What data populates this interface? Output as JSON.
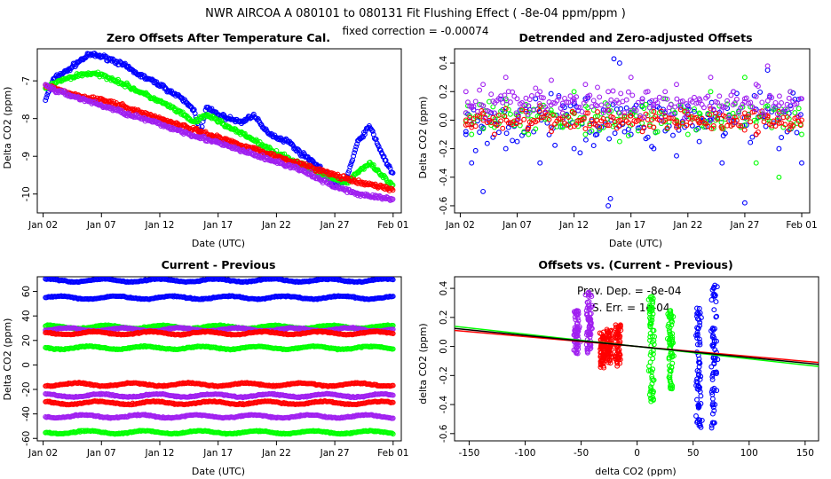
{
  "figure": {
    "title": "NWR   AIRCOA A   080101 to 080131   Fit Flushing Effect ( -8e-04 ppm/ppm )",
    "subtitle": "fixed correction = -0.00074"
  },
  "colors": {
    "blue": "#0000ff",
    "green": "#00ff00",
    "red": "#ff0000",
    "purple": "#a020f0",
    "black": "#000000"
  },
  "chart_data": [
    {
      "id": "zero-offsets",
      "type": "scatter",
      "title": "Zero Offsets After Temperature Cal.",
      "xlabel": "Date (UTC)",
      "ylabel": "Delta CO2 (ppm)",
      "xlim": [
        0.5,
        31.7
      ],
      "ylim": [
        -10.5,
        -6.15
      ],
      "xticks": [
        {
          "v": 1,
          "label": "Jan 02"
        },
        {
          "v": 6,
          "label": "Jan 07"
        },
        {
          "v": 11,
          "label": "Jan 12"
        },
        {
          "v": 16,
          "label": "Jan 17"
        },
        {
          "v": 21,
          "label": "Jan 22"
        },
        {
          "v": 26,
          "label": "Jan 27"
        },
        {
          "v": 31,
          "label": "Feb 01"
        }
      ],
      "yticks": [
        {
          "v": -7,
          "label": "-7"
        },
        {
          "v": -8,
          "label": "-8"
        },
        {
          "v": -9,
          "label": "-9"
        },
        {
          "v": -10,
          "label": "-10"
        }
      ],
      "series": [
        {
          "color": "blue",
          "x": [
            1.2,
            2,
            3,
            4,
            5,
            6,
            7,
            8,
            9,
            10,
            11,
            12,
            13,
            14,
            14.5,
            15,
            16,
            17,
            18,
            19,
            20,
            21,
            22,
            23,
            24,
            25,
            26,
            27,
            28,
            29,
            30,
            31
          ],
          "y": [
            -7.5,
            -6.9,
            -6.75,
            -6.5,
            -6.3,
            -6.35,
            -6.45,
            -6.6,
            -6.8,
            -6.95,
            -7.1,
            -7.3,
            -7.5,
            -7.8,
            -8.4,
            -7.7,
            -7.9,
            -8.0,
            -8.1,
            -7.9,
            -8.3,
            -8.5,
            -8.6,
            -8.9,
            -9.1,
            -9.4,
            -9.8,
            -9.6,
            -8.6,
            -8.2,
            -8.9,
            -9.5
          ]
        },
        {
          "color": "green",
          "x": [
            1.2,
            2,
            3,
            4,
            5,
            6,
            7,
            8,
            9,
            10,
            11,
            12,
            13,
            14,
            15,
            16,
            17,
            18,
            19,
            20,
            21,
            22,
            23,
            24,
            25,
            26,
            27,
            28,
            29,
            30,
            31
          ],
          "y": [
            -7.2,
            -7.05,
            -6.95,
            -6.85,
            -6.8,
            -6.85,
            -6.95,
            -7.1,
            -7.25,
            -7.4,
            -7.55,
            -7.7,
            -7.9,
            -8.1,
            -7.9,
            -8.05,
            -8.25,
            -8.4,
            -8.55,
            -8.75,
            -8.9,
            -9.05,
            -9.2,
            -9.35,
            -9.5,
            -9.6,
            -9.7,
            -9.4,
            -9.2,
            -9.5,
            -9.8
          ]
        },
        {
          "color": "red",
          "x": [
            1.2,
            2,
            3,
            4,
            5,
            6,
            7,
            8,
            9,
            10,
            11,
            12,
            13,
            14,
            15,
            16,
            17,
            18,
            19,
            20,
            21,
            22,
            23,
            24,
            25,
            26,
            27,
            28,
            29,
            30,
            31
          ],
          "y": [
            -7.15,
            -7.2,
            -7.3,
            -7.4,
            -7.45,
            -7.5,
            -7.6,
            -7.7,
            -7.8,
            -7.9,
            -8.0,
            -8.1,
            -8.2,
            -8.3,
            -8.4,
            -8.5,
            -8.6,
            -8.7,
            -8.8,
            -8.9,
            -9.0,
            -9.1,
            -9.2,
            -9.3,
            -9.4,
            -9.5,
            -9.6,
            -9.7,
            -9.75,
            -9.8,
            -9.9
          ]
        },
        {
          "color": "purple",
          "x": [
            1.2,
            2,
            3,
            4,
            5,
            6,
            7,
            8,
            9,
            10,
            11,
            12,
            13,
            14,
            15,
            16,
            17,
            18,
            19,
            20,
            21,
            22,
            23,
            24,
            25,
            26,
            27,
            28,
            29,
            30,
            31
          ],
          "y": [
            -7.1,
            -7.25,
            -7.35,
            -7.45,
            -7.55,
            -7.65,
            -7.75,
            -7.85,
            -7.95,
            -8.05,
            -8.15,
            -8.25,
            -8.35,
            -8.45,
            -8.55,
            -8.65,
            -8.75,
            -8.85,
            -8.95,
            -9.05,
            -9.15,
            -9.25,
            -9.35,
            -9.5,
            -9.65,
            -9.8,
            -9.9,
            -10.0,
            -10.05,
            -10.1,
            -10.15
          ]
        }
      ]
    },
    {
      "id": "detrended",
      "type": "scatter",
      "title": "Detrended and Zero-adjusted Offsets",
      "xlabel": "Date (UTC)",
      "ylabel": "Delta CO2 (ppm)",
      "xlim": [
        0.5,
        31.7
      ],
      "ylim": [
        -0.65,
        0.5
      ],
      "xticks": [
        {
          "v": 1,
          "label": "Jan 02"
        },
        {
          "v": 6,
          "label": "Jan 07"
        },
        {
          "v": 11,
          "label": "Jan 12"
        },
        {
          "v": 16,
          "label": "Jan 17"
        },
        {
          "v": 21,
          "label": "Jan 22"
        },
        {
          "v": 26,
          "label": "Jan 27"
        },
        {
          "v": 31,
          "label": "Feb 01"
        }
      ],
      "yticks": [
        {
          "v": 0.4,
          "label": "0.4"
        },
        {
          "v": 0.2,
          "label": "0.2"
        },
        {
          "v": 0.0,
          "label": "0.0"
        },
        {
          "v": -0.2,
          "label": "-0.2"
        },
        {
          "v": -0.4,
          "label": "-0.4"
        },
        {
          "v": -0.6,
          "label": "-0.6"
        }
      ],
      "series": [
        {
          "color": "blue",
          "center": 0.0,
          "spread": 0.25,
          "x": [
            1.5,
            2,
            3,
            4,
            5,
            6,
            7,
            8,
            9,
            10,
            11,
            12,
            13,
            14,
            14.2,
            14.5,
            15,
            16,
            17,
            18,
            19,
            20,
            21,
            22,
            23,
            24,
            25,
            26,
            27,
            28,
            29,
            30,
            31
          ],
          "y": [
            -0.1,
            -0.3,
            -0.5,
            0.05,
            -0.2,
            -0.15,
            0.1,
            -0.3,
            -0.05,
            0.1,
            -0.2,
            0.15,
            -0.1,
            -0.6,
            -0.55,
            0.43,
            0.4,
            -0.1,
            0.15,
            -0.2,
            0.05,
            -0.25,
            0.1,
            -0.15,
            0.0,
            -0.3,
            0.2,
            -0.58,
            -0.1,
            0.35,
            -0.2,
            0.1,
            -0.3
          ]
        },
        {
          "color": "green",
          "center": 0.02,
          "spread": 0.15,
          "x": [
            1.5,
            2,
            3,
            4,
            5,
            6,
            7,
            8,
            9,
            10,
            11,
            12,
            13,
            14,
            15,
            16,
            17,
            18,
            19,
            20,
            21,
            22,
            23,
            24,
            25,
            26,
            27,
            28,
            29,
            30,
            31
          ],
          "y": [
            0.05,
            -0.1,
            0.1,
            -0.05,
            0.15,
            0.0,
            -0.1,
            0.1,
            0.05,
            -0.05,
            0.2,
            -0.1,
            0.0,
            0.1,
            -0.15,
            0.05,
            0.1,
            -0.05,
            0.15,
            0.0,
            -0.1,
            0.05,
            0.2,
            -0.05,
            0.0,
            0.3,
            -0.3,
            0.1,
            -0.4,
            0.2,
            -0.1
          ]
        },
        {
          "color": "red",
          "center": 0.0,
          "spread": 0.1,
          "x": [
            1.5,
            2,
            3,
            4,
            5,
            6,
            7,
            8,
            9,
            10,
            11,
            12,
            13,
            14,
            15,
            16,
            17,
            18,
            19,
            20,
            21,
            22,
            23,
            24,
            25,
            26,
            27,
            28,
            29,
            30,
            31
          ],
          "y": [
            0.0,
            -0.05,
            0.05,
            -0.1,
            0.08,
            0.0,
            -0.05,
            0.1,
            -0.08,
            0.02,
            0.05,
            -0.06,
            0.0,
            0.07,
            -0.04,
            0.03,
            -0.08,
            0.06,
            0.0,
            -0.05,
            0.04,
            -0.02,
            0.08,
            -0.06,
            0.0,
            0.05,
            -0.1,
            0.02,
            0.06,
            -0.04,
            0.0
          ]
        },
        {
          "color": "purple",
          "center": 0.12,
          "spread": 0.15,
          "x": [
            1.5,
            2,
            3,
            4,
            5,
            6,
            7,
            8,
            9,
            10,
            11,
            12,
            13,
            14,
            15,
            16,
            17,
            18,
            19,
            20,
            21,
            22,
            23,
            24,
            25,
            26,
            27,
            28,
            29,
            30,
            31
          ],
          "y": [
            0.2,
            0.1,
            0.25,
            0.05,
            0.3,
            0.15,
            0.1,
            0.2,
            0.28,
            0.05,
            0.15,
            0.25,
            0.1,
            0.2,
            0.05,
            0.3,
            0.15,
            0.1,
            0.2,
            0.25,
            0.05,
            0.15,
            0.3,
            0.1,
            0.2,
            0.15,
            0.25,
            0.38,
            0.1,
            0.2,
            0.15
          ]
        }
      ]
    },
    {
      "id": "current-previous",
      "type": "scatter",
      "title": "Current - Previous",
      "xlabel": "Date (UTC)",
      "ylabel": "Delta CO2 (ppm)",
      "xlim": [
        0.5,
        31.7
      ],
      "ylim": [
        -62,
        72
      ],
      "xticks": [
        {
          "v": 1,
          "label": "Jan 02"
        },
        {
          "v": 6,
          "label": "Jan 07"
        },
        {
          "v": 11,
          "label": "Jan 12"
        },
        {
          "v": 16,
          "label": "Jan 17"
        },
        {
          "v": 21,
          "label": "Jan 22"
        },
        {
          "v": 26,
          "label": "Jan 27"
        },
        {
          "v": 31,
          "label": "Feb 01"
        }
      ],
      "yticks": [
        {
          "v": 60,
          "label": "60"
        },
        {
          "v": 40,
          "label": "40"
        },
        {
          "v": 20,
          "label": "20"
        },
        {
          "v": 0,
          "label": "0"
        },
        {
          "v": -20,
          "label": "-20"
        },
        {
          "v": -40,
          "label": "-40"
        },
        {
          "v": -60,
          "label": "-60"
        }
      ],
      "series": [
        {
          "color": "blue",
          "level": 69
        },
        {
          "color": "blue",
          "level": 55
        },
        {
          "color": "green",
          "level": 31
        },
        {
          "color": "purple",
          "level": 29
        },
        {
          "color": "red",
          "level": 26
        },
        {
          "color": "green",
          "level": 14
        },
        {
          "color": "red",
          "level": -16
        },
        {
          "color": "purple",
          "level": -25
        },
        {
          "color": "red",
          "level": -31
        },
        {
          "color": "purple",
          "level": -42
        },
        {
          "color": "green",
          "level": -55
        }
      ]
    },
    {
      "id": "offsets-vs",
      "type": "scatter",
      "title": "Offsets vs. (Current - Previous)",
      "xlabel": "delta CO2 (ppm)",
      "ylabel": "delta CO2 (ppm)",
      "xlim": [
        -163,
        162
      ],
      "ylim": [
        -0.65,
        0.48
      ],
      "xticks": [
        {
          "v": -150,
          "label": "-150"
        },
        {
          "v": -100,
          "label": "-100"
        },
        {
          "v": -50,
          "label": "-50"
        },
        {
          "v": 0,
          "label": "0"
        },
        {
          "v": 50,
          "label": "50"
        },
        {
          "v": 100,
          "label": "100"
        },
        {
          "v": 150,
          "label": "150"
        }
      ],
      "yticks": [
        {
          "v": 0.4,
          "label": "0.4"
        },
        {
          "v": 0.2,
          "label": "0.2"
        },
        {
          "v": 0.0,
          "label": "0.0"
        },
        {
          "v": -0.2,
          "label": "-0.2"
        },
        {
          "v": -0.4,
          "label": "-0.4"
        },
        {
          "v": -0.6,
          "label": "-0.6"
        }
      ],
      "annotations": [
        "Prev. Dep. =  -8e-04",
        "S. Err. =  1e-04"
      ],
      "clusters": [
        {
          "color": "purple",
          "x": -54,
          "ymin": -0.05,
          "ymax": 0.25
        },
        {
          "color": "purple",
          "x": -43,
          "ymin": -0.05,
          "ymax": 0.38
        },
        {
          "color": "red",
          "x": -31,
          "ymin": -0.15,
          "ymax": 0.1
        },
        {
          "color": "red",
          "x": -25,
          "ymin": -0.12,
          "ymax": 0.12
        },
        {
          "color": "red",
          "x": -17,
          "ymin": -0.15,
          "ymax": 0.15
        },
        {
          "color": "green",
          "x": 13,
          "ymin": -0.4,
          "ymax": 0.35
        },
        {
          "color": "green",
          "x": 30,
          "ymin": -0.3,
          "ymax": 0.25
        },
        {
          "color": "blue",
          "x": 55,
          "ymin": -0.58,
          "ymax": 0.3
        },
        {
          "color": "blue",
          "x": 69,
          "ymin": -0.6,
          "ymax": 0.43
        }
      ],
      "fit_lines": [
        {
          "color": "red",
          "slope": -0.00068,
          "intercept": 0.0
        },
        {
          "color": "green",
          "slope": -0.00085,
          "intercept": 0.0
        },
        {
          "color": "black",
          "slope": -0.00076,
          "intercept": 0.0
        }
      ]
    }
  ]
}
